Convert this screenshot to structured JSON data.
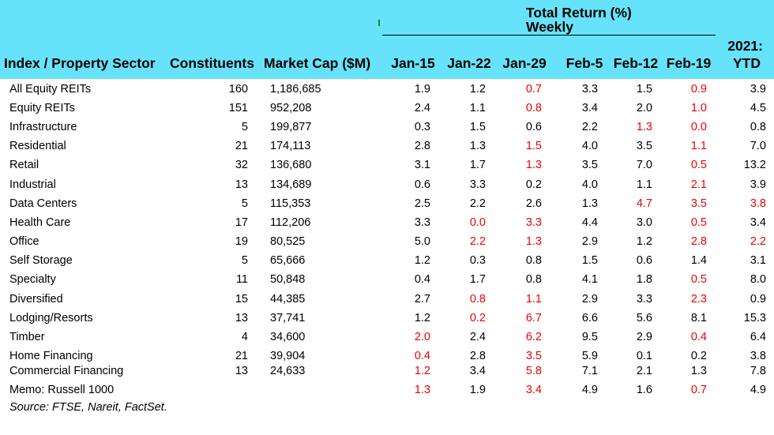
{
  "header": {
    "group_title": "Total Return (%)",
    "group_subtitle": "Weekly",
    "col_sector": "Index / Property Sector",
    "col_constituents": "Constituents",
    "col_market_cap": "Market Cap ($M)",
    "weeks": [
      "Jan-15",
      "Jan-22",
      "Jan-29",
      "Feb-5",
      "Feb-12",
      "Feb-19"
    ],
    "ytd_line1": "2021:",
    "ytd_line2": "YTD"
  },
  "colors": {
    "header_background": "#66e3fa",
    "negative_value": "#ee0000",
    "text": "#000000"
  },
  "table": {
    "rows": [
      {
        "name": "All Equity REITs",
        "constituents": "160",
        "market_cap": "1,186,685",
        "values": [
          "1.9",
          "1.2",
          "0.7",
          "3.3",
          "1.5",
          "0.9",
          "3.9"
        ],
        "negative": [
          false,
          false,
          true,
          false,
          false,
          true,
          false
        ]
      },
      {
        "name": "Equity REITs",
        "constituents": "151",
        "market_cap": "952,208",
        "values": [
          "2.4",
          "1.1",
          "0.8",
          "3.4",
          "2.0",
          "1.0",
          "4.5"
        ],
        "negative": [
          false,
          false,
          true,
          false,
          false,
          true,
          false
        ]
      },
      {
        "name": "Infrastructure",
        "constituents": "5",
        "market_cap": "199,877",
        "values": [
          "0.3",
          "1.5",
          "0.6",
          "2.2",
          "1.3",
          "0.0",
          "0.8"
        ],
        "negative": [
          false,
          false,
          false,
          false,
          true,
          true,
          false
        ]
      },
      {
        "name": "Residential",
        "constituents": "21",
        "market_cap": "174,113",
        "values": [
          "2.8",
          "1.3",
          "1.5",
          "4.0",
          "3.5",
          "1.1",
          "7.0"
        ],
        "negative": [
          false,
          false,
          true,
          false,
          false,
          true,
          false
        ]
      },
      {
        "name": "Retail",
        "constituents": "32",
        "market_cap": "136,680",
        "values": [
          "3.1",
          "1.7",
          "1.3",
          "3.5",
          "7.0",
          "0.5",
          "13.2"
        ],
        "negative": [
          false,
          false,
          true,
          false,
          false,
          true,
          false
        ]
      },
      {
        "name": "Industrial",
        "constituents": "13",
        "market_cap": "134,689",
        "values": [
          "0.6",
          "3.3",
          "0.2",
          "4.0",
          "1.1",
          "2.1",
          "3.9"
        ],
        "negative": [
          false,
          false,
          false,
          false,
          false,
          true,
          false
        ]
      },
      {
        "name": "Data Centers",
        "constituents": "5",
        "market_cap": "115,353",
        "values": [
          "2.5",
          "2.2",
          "2.6",
          "1.3",
          "4.7",
          "3.5",
          "3.8"
        ],
        "negative": [
          false,
          false,
          false,
          false,
          true,
          true,
          true
        ]
      },
      {
        "name": "Health Care",
        "constituents": "17",
        "market_cap": "112,206",
        "values": [
          "3.3",
          "0.0",
          "3.3",
          "4.4",
          "3.0",
          "0.5",
          "3.4"
        ],
        "negative": [
          false,
          true,
          true,
          false,
          false,
          true,
          false
        ]
      },
      {
        "name": "Office",
        "constituents": "19",
        "market_cap": "80,525",
        "values": [
          "5.0",
          "2.2",
          "1.3",
          "2.9",
          "1.2",
          "2.8",
          "2.2"
        ],
        "negative": [
          false,
          true,
          true,
          false,
          false,
          true,
          true
        ]
      },
      {
        "name": "Self Storage",
        "constituents": "5",
        "market_cap": "65,666",
        "values": [
          "1.2",
          "0.3",
          "0.8",
          "1.5",
          "0.6",
          "1.4",
          "3.1"
        ],
        "negative": [
          false,
          false,
          false,
          false,
          false,
          false,
          false
        ]
      },
      {
        "name": "Specialty",
        "constituents": "11",
        "market_cap": "50,848",
        "values": [
          "0.4",
          "1.7",
          "0.8",
          "4.1",
          "1.8",
          "0.5",
          "8.0"
        ],
        "negative": [
          false,
          false,
          false,
          false,
          false,
          true,
          false
        ]
      },
      {
        "name": "Diversified",
        "constituents": "15",
        "market_cap": "44,385",
        "values": [
          "2.7",
          "0.8",
          "1.1",
          "2.9",
          "3.3",
          "2.3",
          "0.9"
        ],
        "negative": [
          false,
          true,
          true,
          false,
          false,
          true,
          false
        ]
      },
      {
        "name": "Lodging/Resorts",
        "constituents": "13",
        "market_cap": "37,741",
        "values": [
          "1.2",
          "0.2",
          "6.7",
          "6.6",
          "5.6",
          "8.1",
          "15.3"
        ],
        "negative": [
          false,
          true,
          true,
          false,
          false,
          false,
          false
        ]
      },
      {
        "name": "Timber",
        "constituents": "4",
        "market_cap": "34,600",
        "values": [
          "2.0",
          "2.4",
          "6.2",
          "9.5",
          "2.9",
          "0.4",
          "6.4"
        ],
        "negative": [
          true,
          false,
          true,
          false,
          false,
          true,
          false
        ]
      },
      {
        "name": "Home Financing",
        "constituents": "21",
        "market_cap": "39,904",
        "values": [
          "0.4",
          "2.8",
          "3.5",
          "5.9",
          "0.1",
          "0.2",
          "3.8"
        ],
        "negative": [
          true,
          false,
          true,
          false,
          false,
          false,
          false
        ]
      },
      {
        "name": "Commercial Financing",
        "constituents": "13",
        "market_cap": "24,633",
        "values": [
          "1.2",
          "3.4",
          "5.8",
          "7.1",
          "2.1",
          "1.3",
          "7.8"
        ],
        "negative": [
          true,
          false,
          true,
          false,
          false,
          false,
          false
        ]
      },
      {
        "name": "Memo: Russell 1000",
        "constituents": "",
        "market_cap": "",
        "values": [
          "1.3",
          "1.9",
          "3.4",
          "4.9",
          "1.6",
          "0.7",
          "4.9"
        ],
        "negative": [
          true,
          false,
          true,
          false,
          false,
          true,
          false
        ]
      }
    ]
  },
  "source": "Source: FTSE, Nareit, FactSet."
}
